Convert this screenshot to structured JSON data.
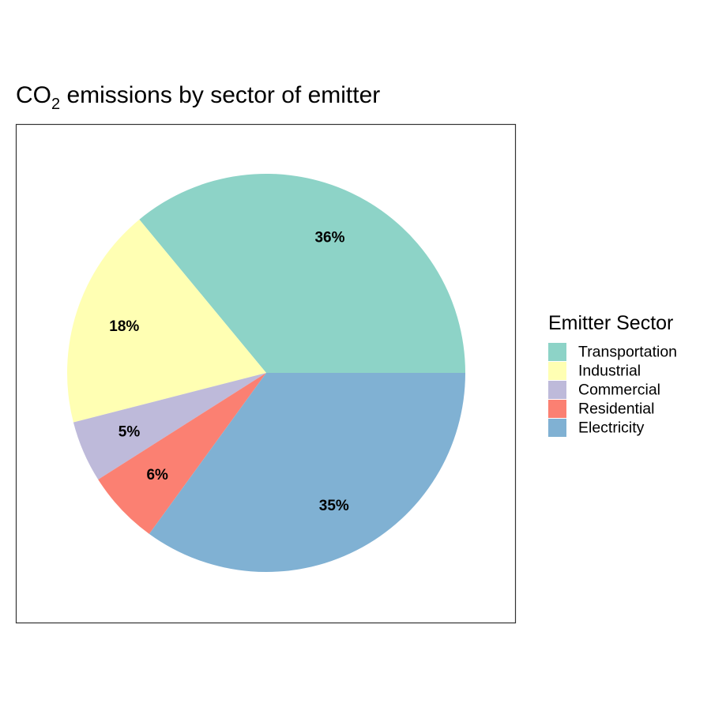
{
  "chart_data": {
    "type": "pie",
    "title_main": "CO",
    "title_sub": "2",
    "title_rest": " emissions by sector of emitter",
    "legend_title": "Emitter Sector",
    "legend_position": "right",
    "start": "3 o'clock, counter-clockwise",
    "slices": [
      {
        "name": "Transportation",
        "value": 36,
        "label": "36%",
        "color": "#8DD3C7"
      },
      {
        "name": "Industrial",
        "value": 18,
        "label": "18%",
        "color": "#FFFFB3"
      },
      {
        "name": "Commercial",
        "value": 5,
        "label": "5%",
        "color": "#BEBADA"
      },
      {
        "name": "Residential",
        "value": 6,
        "label": "6%",
        "color": "#FB8072"
      },
      {
        "name": "Electricity",
        "value": 35,
        "label": "35%",
        "color": "#80B1D3"
      }
    ]
  }
}
